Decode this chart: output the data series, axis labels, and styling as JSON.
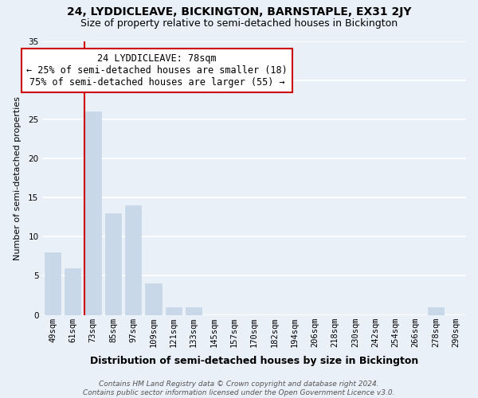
{
  "title": "24, LYDDICLEAVE, BICKINGTON, BARNSTAPLE, EX31 2JY",
  "subtitle": "Size of property relative to semi-detached houses in Bickington",
  "xlabel": "Distribution of semi-detached houses by size in Bickington",
  "ylabel": "Number of semi-detached properties",
  "categories": [
    "49sqm",
    "61sqm",
    "73sqm",
    "85sqm",
    "97sqm",
    "109sqm",
    "121sqm",
    "133sqm",
    "145sqm",
    "157sqm",
    "170sqm",
    "182sqm",
    "194sqm",
    "206sqm",
    "218sqm",
    "230sqm",
    "242sqm",
    "254sqm",
    "266sqm",
    "278sqm",
    "290sqm"
  ],
  "values": [
    8,
    6,
    26,
    13,
    14,
    4,
    1,
    1,
    0,
    0,
    0,
    0,
    0,
    0,
    0,
    0,
    0,
    0,
    0,
    1,
    0
  ],
  "bar_color": "#c8d8e8",
  "bar_edge_color": "#c8d8e8",
  "vline_bar_index": 2,
  "vline_color": "#cc0000",
  "annotation_text": "24 LYDDICLEAVE: 78sqm\n← 25% of semi-detached houses are smaller (18)\n75% of semi-detached houses are larger (55) →",
  "annotation_box_facecolor": "#ffffff",
  "annotation_box_edgecolor": "#cc0000",
  "ylim": [
    0,
    35
  ],
  "yticks": [
    0,
    5,
    10,
    15,
    20,
    25,
    30,
    35
  ],
  "bg_color": "#eaf0f8",
  "grid_color": "#ffffff",
  "title_fontsize": 10,
  "subtitle_fontsize": 9,
  "xlabel_fontsize": 9,
  "ylabel_fontsize": 8,
  "tick_fontsize": 7.5,
  "footer": "Contains HM Land Registry data © Crown copyright and database right 2024.\nContains public sector information licensed under the Open Government Licence v3.0.",
  "footer_fontsize": 6.5
}
